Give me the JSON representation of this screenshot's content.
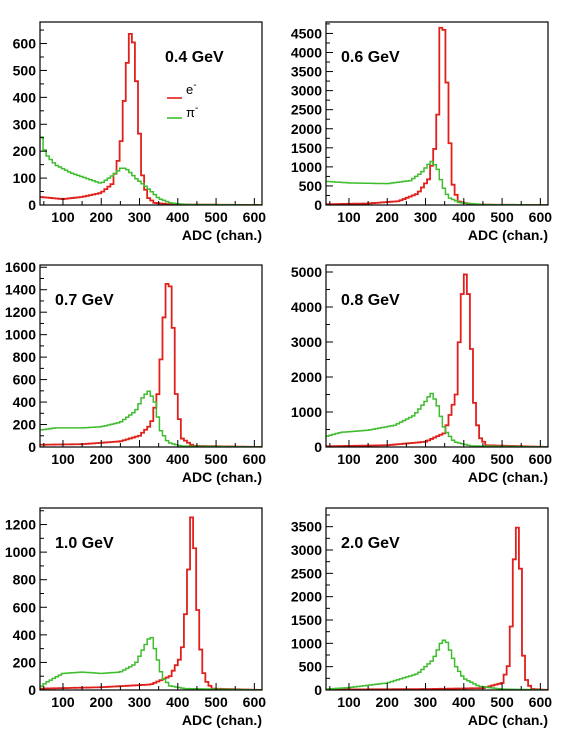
{
  "figure": {
    "legend": {
      "electron_label": "e",
      "electron_sup": "-",
      "pion_label": "π",
      "pion_sup": "-"
    },
    "colors": {
      "electron": "#e0201b",
      "pion": "#3fbd2f",
      "axis": "#000000"
    }
  },
  "chart_data": [
    {
      "type": "histogram",
      "title": "0.4 GeV",
      "xlabel": "ADC (chan.)",
      "ylabel": "",
      "xlim": [
        40,
        620
      ],
      "ylim": [
        0,
        680
      ],
      "xticks": [
        100,
        200,
        300,
        400,
        500,
        600
      ],
      "yticks": [
        0,
        100,
        200,
        300,
        400,
        500,
        600
      ],
      "ytick_labels": [
        "0",
        "100",
        "200",
        "300",
        "400",
        "500",
        "600"
      ],
      "legend": true,
      "series": [
        {
          "name": "e-",
          "color": "#e0201b",
          "points": [
            [
              40,
              30
            ],
            [
              100,
              22
            ],
            [
              150,
              30
            ],
            [
              200,
              45
            ],
            [
              230,
              80
            ],
            [
              250,
              200
            ],
            [
              265,
              480
            ],
            [
              275,
              640
            ],
            [
              285,
              600
            ],
            [
              295,
              400
            ],
            [
              305,
              130
            ],
            [
              320,
              30
            ],
            [
              340,
              8
            ],
            [
              380,
              2
            ],
            [
              620,
              0
            ]
          ]
        },
        {
          "name": "π-",
          "color": "#3fbd2f",
          "points": [
            [
              40,
              300
            ],
            [
              45,
              240
            ],
            [
              55,
              190
            ],
            [
              80,
              150
            ],
            [
              120,
              120
            ],
            [
              160,
              100
            ],
            [
              200,
              80
            ],
            [
              230,
              110
            ],
            [
              255,
              140
            ],
            [
              270,
              130
            ],
            [
              290,
              100
            ],
            [
              320,
              65
            ],
            [
              350,
              25
            ],
            [
              380,
              8
            ],
            [
              420,
              2
            ],
            [
              620,
              0
            ]
          ]
        }
      ]
    },
    {
      "type": "histogram",
      "title": "0.6 GeV",
      "xlabel": "ADC (chan.)",
      "ylabel": "",
      "xlim": [
        40,
        620
      ],
      "ylim": [
        0,
        4800
      ],
      "xticks": [
        100,
        200,
        300,
        400,
        500,
        600
      ],
      "yticks": [
        0,
        500,
        1000,
        1500,
        2000,
        2500,
        3000,
        3500,
        4000,
        4500
      ],
      "ytick_labels": [
        "0",
        "500",
        "1000",
        "1500",
        "2000",
        "2500",
        "3000",
        "3500",
        "4000",
        "4500"
      ],
      "legend": false,
      "series": [
        {
          "name": "e-",
          "color": "#e0201b",
          "points": [
            [
              40,
              20
            ],
            [
              150,
              40
            ],
            [
              230,
              100
            ],
            [
              280,
              300
            ],
            [
              310,
              700
            ],
            [
              330,
              1800
            ],
            [
              340,
              4650
            ],
            [
              350,
              4580
            ],
            [
              360,
              2300
            ],
            [
              370,
              600
            ],
            [
              385,
              100
            ],
            [
              420,
              10
            ],
            [
              620,
              0
            ]
          ]
        },
        {
          "name": "π-",
          "color": "#3fbd2f",
          "points": [
            [
              40,
              620
            ],
            [
              100,
              580
            ],
            [
              200,
              560
            ],
            [
              260,
              640
            ],
            [
              290,
              850
            ],
            [
              315,
              1150
            ],
            [
              330,
              1000
            ],
            [
              345,
              500
            ],
            [
              360,
              200
            ],
            [
              390,
              60
            ],
            [
              450,
              10
            ],
            [
              620,
              0
            ]
          ]
        }
      ]
    },
    {
      "type": "histogram",
      "title": "0.7 GeV",
      "xlabel": "ADC (chan.)",
      "ylabel": "",
      "xlim": [
        40,
        620
      ],
      "ylim": [
        0,
        1620
      ],
      "xticks": [
        100,
        200,
        300,
        400,
        500,
        600
      ],
      "yticks": [
        0,
        200,
        400,
        600,
        800,
        1000,
        1200,
        1400,
        1600
      ],
      "ytick_labels": [
        "0",
        "200",
        "400",
        "600",
        "800",
        "1000",
        "1200",
        "1400",
        "1600"
      ],
      "legend": false,
      "series": [
        {
          "name": "e-",
          "color": "#e0201b",
          "points": [
            [
              40,
              20
            ],
            [
              150,
              25
            ],
            [
              250,
              50
            ],
            [
              300,
              100
            ],
            [
              330,
              200
            ],
            [
              350,
              500
            ],
            [
              365,
              1200
            ],
            [
              375,
              1560
            ],
            [
              385,
              1300
            ],
            [
              395,
              500
            ],
            [
              410,
              80
            ],
            [
              440,
              10
            ],
            [
              620,
              0
            ]
          ]
        },
        {
          "name": "π-",
          "color": "#3fbd2f",
          "points": [
            [
              40,
              150
            ],
            [
              80,
              170
            ],
            [
              150,
              170
            ],
            [
              200,
              180
            ],
            [
              250,
              220
            ],
            [
              290,
              320
            ],
            [
              310,
              450
            ],
            [
              325,
              500
            ],
            [
              340,
              400
            ],
            [
              355,
              150
            ],
            [
              375,
              40
            ],
            [
              410,
              8
            ],
            [
              620,
              0
            ]
          ]
        }
      ]
    },
    {
      "type": "histogram",
      "title": "0.8 GeV",
      "xlabel": "ADC (chan.)",
      "ylabel": "",
      "xlim": [
        40,
        620
      ],
      "ylim": [
        0,
        5200
      ],
      "xticks": [
        100,
        200,
        300,
        400,
        500,
        600
      ],
      "yticks": [
        0,
        1000,
        2000,
        3000,
        4000,
        5000
      ],
      "ytick_labels": [
        "0",
        "1000",
        "2000",
        "3000",
        "4000",
        "5000"
      ],
      "legend": false,
      "series": [
        {
          "name": "e-",
          "color": "#e0201b",
          "points": [
            [
              40,
              20
            ],
            [
              200,
              50
            ],
            [
              300,
              150
            ],
            [
              350,
              400
            ],
            [
              380,
              1500
            ],
            [
              395,
              4300
            ],
            [
              405,
              5000
            ],
            [
              415,
              4100
            ],
            [
              425,
              1500
            ],
            [
              440,
              300
            ],
            [
              460,
              50
            ],
            [
              620,
              0
            ]
          ]
        },
        {
          "name": "π-",
          "color": "#3fbd2f",
          "points": [
            [
              40,
              300
            ],
            [
              80,
              420
            ],
            [
              150,
              480
            ],
            [
              220,
              620
            ],
            [
              270,
              900
            ],
            [
              300,
              1300
            ],
            [
              315,
              1550
            ],
            [
              330,
              1250
            ],
            [
              350,
              500
            ],
            [
              375,
              150
            ],
            [
              420,
              30
            ],
            [
              620,
              0
            ]
          ]
        }
      ]
    },
    {
      "type": "histogram",
      "title": "1.0 GeV",
      "xlabel": "ADC (chan.)",
      "ylabel": "",
      "xlim": [
        40,
        620
      ],
      "ylim": [
        0,
        1320
      ],
      "xticks": [
        100,
        200,
        300,
        400,
        500,
        600
      ],
      "yticks": [
        0,
        200,
        400,
        600,
        800,
        1000,
        1200
      ],
      "ytick_labels": [
        "0",
        "200",
        "400",
        "600",
        "800",
        "1000",
        "1200"
      ],
      "legend": false,
      "series": [
        {
          "name": "e-",
          "color": "#e0201b",
          "points": [
            [
              40,
              10
            ],
            [
              200,
              20
            ],
            [
              330,
              40
            ],
            [
              380,
              100
            ],
            [
              410,
              250
            ],
            [
              425,
              700
            ],
            [
              435,
              1280
            ],
            [
              445,
              1000
            ],
            [
              455,
              400
            ],
            [
              470,
              80
            ],
            [
              490,
              10
            ],
            [
              620,
              0
            ]
          ]
        },
        {
          "name": "π-",
          "color": "#3fbd2f",
          "points": [
            [
              40,
              20
            ],
            [
              60,
              60
            ],
            [
              100,
              120
            ],
            [
              150,
              130
            ],
            [
              200,
              120
            ],
            [
              250,
              130
            ],
            [
              290,
              190
            ],
            [
              310,
              300
            ],
            [
              330,
              400
            ],
            [
              345,
              250
            ],
            [
              360,
              90
            ],
            [
              380,
              30
            ],
            [
              420,
              10
            ],
            [
              620,
              0
            ]
          ]
        }
      ]
    },
    {
      "type": "histogram",
      "title": "2.0 GeV",
      "xlabel": "ADC (chan.)",
      "ylabel": "",
      "xlim": [
        40,
        620
      ],
      "ylim": [
        0,
        3900
      ],
      "xticks": [
        100,
        200,
        300,
        400,
        500,
        600
      ],
      "yticks": [
        0,
        500,
        1000,
        1500,
        2000,
        2500,
        3000,
        3500
      ],
      "ytick_labels": [
        "0",
        "500",
        "1000",
        "1500",
        "2000",
        "2500",
        "3000",
        "3500"
      ],
      "legend": false,
      "series": [
        {
          "name": "e-",
          "color": "#e0201b",
          "points": [
            [
              40,
              10
            ],
            [
              300,
              20
            ],
            [
              450,
              40
            ],
            [
              500,
              150
            ],
            [
              520,
              600
            ],
            [
              530,
              2500
            ],
            [
              538,
              3700
            ],
            [
              548,
              2600
            ],
            [
              555,
              800
            ],
            [
              565,
              150
            ],
            [
              580,
              20
            ],
            [
              620,
              0
            ]
          ]
        },
        {
          "name": "π-",
          "color": "#3fbd2f",
          "points": [
            [
              40,
              20
            ],
            [
              100,
              50
            ],
            [
              200,
              150
            ],
            [
              280,
              350
            ],
            [
              320,
              650
            ],
            [
              340,
              1000
            ],
            [
              352,
              1100
            ],
            [
              362,
              900
            ],
            [
              380,
              500
            ],
            [
              400,
              250
            ],
            [
              440,
              80
            ],
            [
              500,
              20
            ],
            [
              620,
              0
            ]
          ]
        }
      ]
    }
  ]
}
